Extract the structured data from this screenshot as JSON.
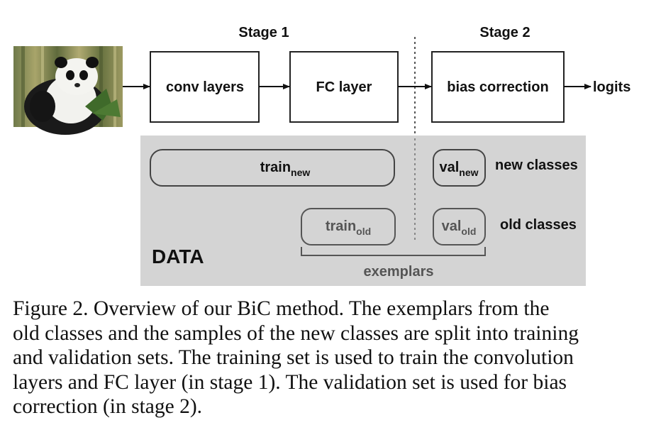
{
  "stages": {
    "stage1": "Stage 1",
    "stage2": "Stage 2"
  },
  "blocks": {
    "conv": "conv layers",
    "fc": "FC layer",
    "bias": "bias correction",
    "output": "logits"
  },
  "data_region": {
    "label": "DATA",
    "train_new": {
      "base": "train",
      "sub": "new"
    },
    "train_old": {
      "base": "train",
      "sub": "old"
    },
    "val_new": {
      "base": "val",
      "sub": "new"
    },
    "val_old": {
      "base": "val",
      "sub": "old"
    },
    "new_classes": "new classes",
    "old_classes": "old classes",
    "exemplars": "exemplars"
  },
  "caption": {
    "lines": [
      "Figure 2. Overview of our BiC method.  The exemplars from the",
      "old classes and the samples of the new classes are split into training",
      "and validation sets. The training set is used to train the convolution",
      "layers and FC layer (in stage 1). The validation set is used for bias",
      "correction (in stage 2)."
    ]
  }
}
